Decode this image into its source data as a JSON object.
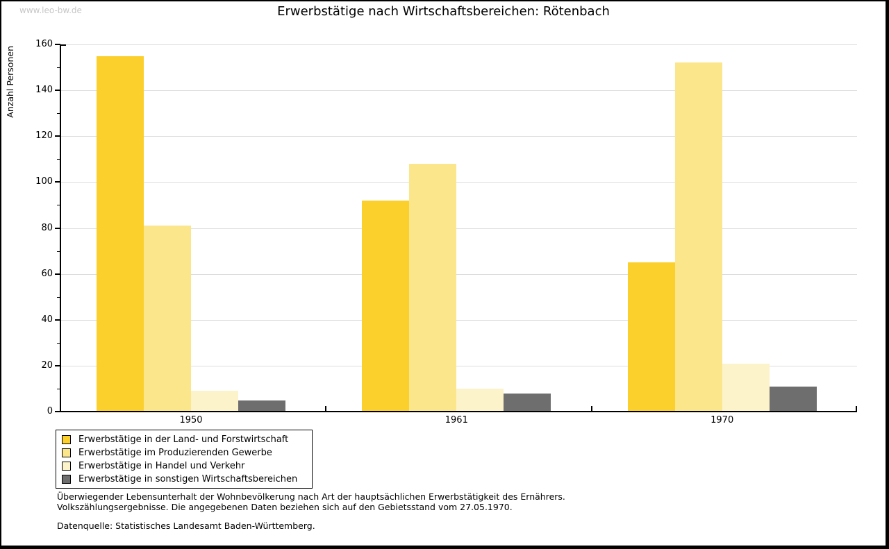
{
  "watermark": "www.leo-bw.de",
  "title": "Erwerbstätige nach Wirtschaftsbereichen: Rötenbach",
  "chart_data": {
    "type": "bar",
    "title": "Erwerbstätige nach Wirtschaftsbereichen: Rötenbach",
    "xlabel": "",
    "ylabel": "Anzahl Personen",
    "categories": [
      "1950",
      "1961",
      "1970"
    ],
    "series": [
      {
        "name": "Erwerbstätige in der Land- und Forstwirtschaft",
        "color": "#FCD02C",
        "values": [
          155,
          92,
          65
        ]
      },
      {
        "name": "Erwerbstätige im Produzierenden Gewerbe",
        "color": "#FBE68C",
        "values": [
          81,
          108,
          152
        ]
      },
      {
        "name": "Erwerbstätige in Handel und Verkehr",
        "color": "#FCF3CB",
        "values": [
          9,
          10,
          21
        ]
      },
      {
        "name": "Erwerbstätige in sonstigen Wirtschaftsbereichen",
        "color": "#6E6E6E",
        "values": [
          5,
          8,
          11
        ]
      }
    ],
    "ylim": [
      0,
      160
    ],
    "yticks": [
      0,
      20,
      40,
      60,
      80,
      100,
      120,
      140,
      160
    ],
    "ytick_minor_step": 10,
    "grid": true,
    "gridline_color": "#DDDDDD",
    "legend_position": "bottom-left"
  },
  "footer": {
    "line1": "Überwiegender Lebensunterhalt der Wohnbevölkerung nach Art der hauptsächlichen Erwerbstätigkeit des Ernährers.",
    "line2": "Volkszählungsergebnisse. Die angegebenen Daten beziehen sich auf den Gebietsstand vom 27.05.1970.",
    "source": "Datenquelle: Statistisches Landesamt Baden-Württemberg."
  }
}
